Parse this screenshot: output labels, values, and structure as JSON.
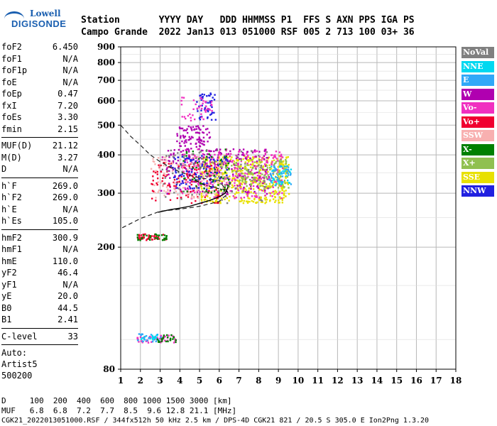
{
  "logo": {
    "line1": "Lowell",
    "line2": "DIGISONDE"
  },
  "header": {
    "row1": "Station       YYYY DAY   DDD HHMMSS P1  FFS S AXN PPS IGA PS",
    "row2": "Campo Grande  2022 Jan13 013 051000 RSF 005 2 713 100 03+ 36"
  },
  "params_groups": [
    [
      {
        "label": "foF2",
        "value": "6.450"
      },
      {
        "label": "foF1",
        "value": "N/A"
      },
      {
        "label": "foF1p",
        "value": "N/A"
      },
      {
        "label": "foE",
        "value": "N/A"
      },
      {
        "label": "foEp",
        "value": "0.47"
      },
      {
        "label": "fxI",
        "value": "7.20"
      },
      {
        "label": "foEs",
        "value": "3.30"
      },
      {
        "label": "fmin",
        "value": "2.15"
      }
    ],
    [
      {
        "label": "MUF(D)",
        "value": "21.12"
      },
      {
        "label": "M(D)",
        "value": "3.27"
      },
      {
        "label": "D",
        "value": "N/A"
      }
    ],
    [
      {
        "label": "h`F",
        "value": "269.0"
      },
      {
        "label": "h`F2",
        "value": "269.0"
      },
      {
        "label": "h`E",
        "value": "N/A"
      },
      {
        "label": "h`Es",
        "value": "105.0"
      }
    ],
    [
      {
        "label": "hmF2",
        "value": "300.9"
      },
      {
        "label": "hmF1",
        "value": "N/A"
      },
      {
        "label": "hmE",
        "value": "110.0"
      },
      {
        "label": "yF2",
        "value": "46.4"
      },
      {
        "label": "yF1",
        "value": "N/A"
      },
      {
        "label": "yE",
        "value": "20.0"
      },
      {
        "label": "B0",
        "value": "44.5"
      },
      {
        "label": "B1",
        "value": "2.41"
      }
    ],
    [
      {
        "label": "C-level",
        "value": "33"
      }
    ]
  ],
  "autoscale": {
    "line1": "Auto:",
    "line2": "Artist5",
    "line3": "500200"
  },
  "legend": [
    {
      "label": "NoVal",
      "color": "#808080"
    },
    {
      "label": "NNE",
      "color": "#00d8f0"
    },
    {
      "label": "E",
      "color": "#30a8f8"
    },
    {
      "label": "W",
      "color": "#b000b0"
    },
    {
      "label": "Vo-",
      "color": "#f030c0"
    },
    {
      "label": "Vo+",
      "color": "#f00030"
    },
    {
      "label": "SSW",
      "color": "#f8b0b0"
    },
    {
      "label": "X-",
      "color": "#008000"
    },
    {
      "label": "X+",
      "color": "#90c050"
    },
    {
      "label": "SSE",
      "color": "#e8e000"
    },
    {
      "label": "NNW",
      "color": "#2020e0"
    }
  ],
  "chart_data": {
    "type": "scatter",
    "xlim": [
      1,
      18
    ],
    "ylim": [
      80,
      900
    ],
    "xticks": [
      "1",
      "2",
      "3",
      "4",
      "5",
      "6",
      "7",
      "8",
      "9",
      "10",
      "11",
      "12",
      "13",
      "14",
      "15",
      "16",
      "17",
      "18"
    ],
    "yticks": [
      "80",
      "200",
      "300",
      "400",
      "500",
      "600",
      "700",
      "800",
      "900"
    ],
    "grid": true,
    "y_scale": "log",
    "profile_dashed": [
      [
        1.0,
        500
      ],
      [
        1.5,
        460
      ],
      [
        2.0,
        430
      ],
      [
        2.5,
        400
      ],
      [
        3.0,
        380
      ],
      [
        3.5,
        365
      ],
      [
        4.0,
        352
      ],
      [
        4.5,
        343
      ],
      [
        5.0,
        337
      ],
      [
        5.5,
        333
      ],
      [
        6.0,
        330
      ],
      [
        6.45,
        300
      ],
      [
        6.0,
        282
      ],
      [
        5.0,
        272
      ],
      [
        4.0,
        266
      ],
      [
        3.0,
        262
      ],
      [
        2.0,
        248
      ],
      [
        1.0,
        230
      ]
    ],
    "profile_trace": [
      [
        2.9,
        260
      ],
      [
        3.5,
        265
      ],
      [
        4.0,
        268
      ],
      [
        4.5,
        272
      ],
      [
        5.0,
        278
      ],
      [
        5.5,
        284
      ],
      [
        6.0,
        292
      ],
      [
        6.3,
        300
      ],
      [
        6.45,
        315
      ]
    ],
    "profile_dashdot": [
      [
        4.8,
        330
      ],
      [
        5.2,
        320
      ],
      [
        5.6,
        315
      ],
      [
        6.0,
        310
      ],
      [
        6.3,
        308
      ],
      [
        6.45,
        300
      ]
    ],
    "clusters": [
      {
        "series": "W",
        "x": [
          3.8,
          5.5
        ],
        "y": [
          420,
          500
        ],
        "n": 90
      },
      {
        "series": "NNW",
        "x": [
          4.8,
          5.8
        ],
        "y": [
          520,
          640
        ],
        "n": 50
      },
      {
        "series": "Vo-",
        "x": [
          4.0,
          5.6
        ],
        "y": [
          520,
          620
        ],
        "n": 40
      },
      {
        "series": "SSE",
        "x": [
          5.0,
          9.5
        ],
        "y": [
          280,
          400
        ],
        "n": 520
      },
      {
        "series": "Vo-",
        "x": [
          4.0,
          9.2
        ],
        "y": [
          290,
          420
        ],
        "n": 320
      },
      {
        "series": "W",
        "x": [
          3.0,
          8.5
        ],
        "y": [
          300,
          420
        ],
        "n": 200
      },
      {
        "series": "X+",
        "x": [
          6.0,
          9.5
        ],
        "y": [
          310,
          390
        ],
        "n": 120
      },
      {
        "series": "Vo+",
        "x": [
          2.5,
          6.0
        ],
        "y": [
          280,
          380
        ],
        "n": 120
      },
      {
        "series": "SSW",
        "x": [
          2.5,
          6.5
        ],
        "y": [
          290,
          400
        ],
        "n": 120
      },
      {
        "series": "NNW",
        "x": [
          3.5,
          6.5
        ],
        "y": [
          310,
          400
        ],
        "n": 100
      },
      {
        "series": "NNE",
        "x": [
          8.5,
          9.6
        ],
        "y": [
          320,
          370
        ],
        "n": 40
      },
      {
        "series": "E",
        "x": [
          8.5,
          9.6
        ],
        "y": [
          320,
          370
        ],
        "n": 30
      },
      {
        "series": "X-",
        "x": [
          4.0,
          6.5
        ],
        "y": [
          300,
          420
        ],
        "n": 60
      },
      {
        "series": "NoVal",
        "x": [
          3.0,
          8.5
        ],
        "y": [
          280,
          420
        ],
        "n": 90
      },
      {
        "series": "Vo+",
        "x": [
          1.8,
          3.3
        ],
        "y": [
          212,
          222
        ],
        "n": 40
      },
      {
        "series": "X-",
        "x": [
          1.8,
          3.3
        ],
        "y": [
          212,
          222
        ],
        "n": 30
      },
      {
        "series": "Vo-",
        "x": [
          1.8,
          3.8
        ],
        "y": [
          98,
          104
        ],
        "n": 50
      },
      {
        "series": "E",
        "x": [
          1.8,
          3.0
        ],
        "y": [
          99,
          105
        ],
        "n": 30
      },
      {
        "series": "X-",
        "x": [
          2.8,
          3.8
        ],
        "y": [
          98,
          104
        ],
        "n": 25
      },
      {
        "series": "NNE",
        "x": [
          2.0,
          2.8
        ],
        "y": [
          100,
          104
        ],
        "n": 15
      }
    ]
  },
  "footer": {
    "row1": "D     100  200  400  600  800 1000 1500 3000 [km]",
    "row2": "MUF   6.8  6.8  7.2  7.7  8.5  9.6 12.8 21.1 [MHz]",
    "row3": "CGK21_2022013051000.RSF / 344fx512h 50 kHz 2.5 km / DPS-4D CGK21 821 / 20.5 S 305.0 E Ion2Png 1.3.20"
  }
}
